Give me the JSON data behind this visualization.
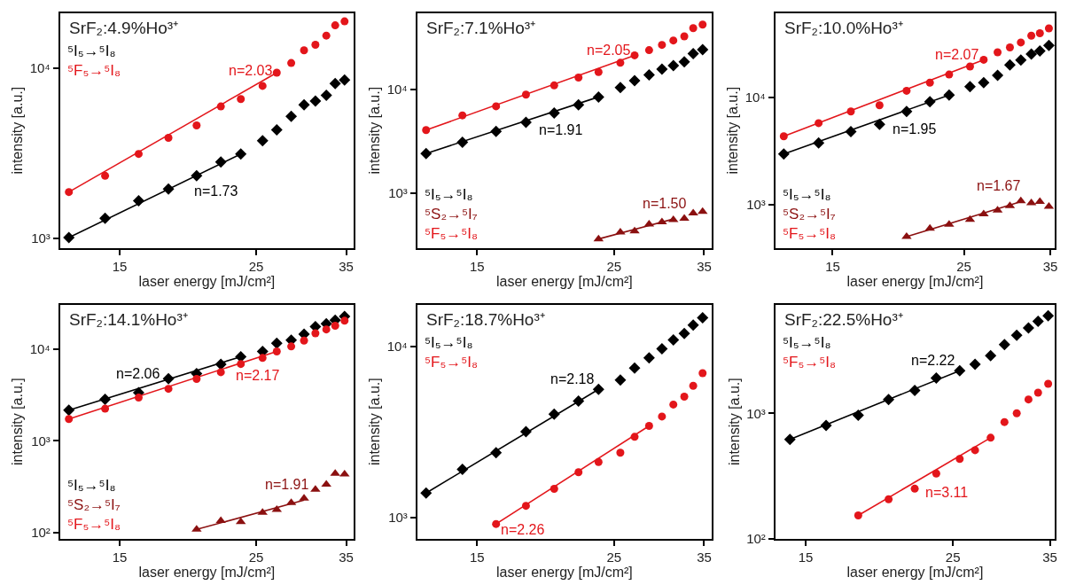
{
  "chart_data": [
    {
      "type": "scatter",
      "title": "SrF₂:4.9%Ho³⁺",
      "xlabel": "laser energy [mJ/cm²]",
      "ylabel": "intensity [a.u.]",
      "log": "xy",
      "grid": false,
      "legend": "top left",
      "xlim": [
        12.0,
        36.0
      ],
      "xticks": [
        15,
        25,
        35
      ],
      "ylim": [
        880,
        21000
      ],
      "yticks": [
        {
          "value": 1000,
          "label": "10³"
        },
        {
          "value": 10000,
          "label": "10⁴"
        }
      ],
      "x": [
        12.4,
        14.2,
        16.1,
        18.0,
        20.0,
        21.9,
        23.6,
        25.6,
        27.0,
        28.5,
        29.9,
        31.2,
        32.5,
        33.6,
        34.8
      ],
      "series": [
        {
          "name": "⁵I₅→⁵I₈",
          "color": "#000000",
          "marker": "diamond",
          "values": [
            1010,
            1310,
            1660,
            1950,
            2330,
            2810,
            3130,
            3740,
            4330,
            5200,
            6090,
            6390,
            6920,
            8110,
            8500
          ]
        },
        {
          "name": "⁵F₅→⁵I₈",
          "color": "#e3161b",
          "marker": "circle",
          "values": [
            1870,
            2330,
            3130,
            3890,
            4600,
            5950,
            6570,
            7850,
            9390,
            10700,
            12700,
            13700,
            15500,
            17800,
            18800
          ]
        },
        {
          "type": "line",
          "color": "#e3161b",
          "x": [
            12.4,
            27.0
          ],
          "values": [
            1870,
            9390
          ]
        },
        {
          "type": "line",
          "color": "#000000",
          "x": [
            12.4,
            23.6
          ],
          "values": [
            1010,
            3130
          ]
        }
      ],
      "annotations": [
        "n=2.03",
        "n=1.73"
      ]
    },
    {
      "type": "scatter",
      "title": "SrF₂:7.1%Ho³⁺",
      "xlabel": "laser energy [mJ/cm²]",
      "ylabel": "intensity [a.u.]",
      "log": "xy",
      "grid": false,
      "legend": "bottom left",
      "xlim": [
        12.0,
        36.0
      ],
      "xticks": [
        15,
        25,
        35
      ],
      "ylim": [
        295,
        55000
      ],
      "yticks": [
        {
          "value": 1000,
          "label": "10³"
        },
        {
          "value": 10000,
          "label": "10⁴"
        }
      ],
      "x": [
        12.4,
        14.2,
        16.1,
        18.0,
        20.0,
        21.9,
        23.6,
        25.6,
        27.0,
        28.5,
        29.9,
        31.2,
        32.5,
        33.6,
        34.8
      ],
      "series": [
        {
          "name": "⁵I₅→⁵I₈",
          "color": "#000000",
          "marker": "diamond",
          "values": [
            2410,
            3090,
            3940,
            4820,
            5930,
            7130,
            8500,
            10500,
            12200,
            13900,
            15800,
            17100,
            18600,
            22300,
            24400
          ]
        },
        {
          "name": "⁵S₂→⁵I₇",
          "color": "#8b1010",
          "marker": "triangle",
          "values": [
            null,
            null,
            null,
            null,
            null,
            null,
            359,
            417,
            428,
            498,
            525,
            550,
            567,
            638,
            660
          ]
        },
        {
          "name": "⁵F₅→⁵I₈",
          "color": "#e3161b",
          "marker": "circle",
          "values": [
            4060,
            5640,
            6900,
            8950,
            11000,
            13100,
            14800,
            18200,
            21500,
            24100,
            27100,
            29900,
            32800,
            39400,
            42600
          ]
        },
        {
          "type": "line",
          "color": "#e3161b",
          "x": [
            12.4,
            27.0
          ],
          "values": [
            4060,
            21500
          ]
        },
        {
          "type": "line",
          "color": "#000000",
          "x": [
            12.4,
            23.6
          ],
          "values": [
            2410,
            8500
          ]
        },
        {
          "type": "line",
          "color": "#8b1010",
          "x": [
            23.6,
            31.2
          ],
          "values": [
            359,
            560
          ]
        }
      ],
      "annotations": [
        "n=2.05",
        "n=1.91",
        "n=1.50"
      ]
    },
    {
      "type": "scatter",
      "title": "SrF₂:10.0%Ho³⁺",
      "xlabel": "laser energy [mJ/cm²]",
      "ylabel": "intensity [a.u.]",
      "log": "xy",
      "grid": false,
      "legend": "bottom left",
      "xlim": [
        12.0,
        35.6
      ],
      "xticks": [
        15,
        25,
        35
      ],
      "ylim": [
        394,
        61000
      ],
      "yticks": [
        {
          "value": 1000,
          "label": "10³"
        },
        {
          "value": 10000,
          "label": "10⁴"
        }
      ],
      "x": [
        12.4,
        14.2,
        16.1,
        18.0,
        20.0,
        21.9,
        23.6,
        25.6,
        27.0,
        28.5,
        29.9,
        31.2,
        32.5,
        33.6,
        34.8
      ],
      "series": [
        {
          "name": "⁵I₅→⁵I₈",
          "color": "#000000",
          "marker": "diamond",
          "values": [
            2960,
            3760,
            4780,
            5600,
            7380,
            9100,
            10500,
            12600,
            13700,
            16000,
            20000,
            22300,
            25300,
            27100,
            30500
          ]
        },
        {
          "name": "⁵S₂→⁵I₇",
          "color": "#8b1010",
          "marker": "triangle",
          "values": [
            null,
            null,
            null,
            null,
            500,
            596,
            651,
            721,
            813,
            881,
            969,
            1080,
            1030,
            1060,
            957
          ]
        },
        {
          "name": "⁵F₅→⁵I₈",
          "color": "#e3161b",
          "marker": "circle",
          "values": [
            4330,
            5740,
            7380,
            8430,
            11500,
            13700,
            16300,
            19400,
            22400,
            26300,
            29200,
            32500,
            37600,
            39600,
            44000
          ]
        },
        {
          "type": "line",
          "color": "#e3161b",
          "x": [
            12.4,
            27.0
          ],
          "values": [
            4330,
            22400
          ]
        },
        {
          "type": "line",
          "color": "#000000",
          "x": [
            12.4,
            23.6
          ],
          "values": [
            2960,
            10500
          ]
        },
        {
          "type": "line",
          "color": "#8b1010",
          "x": [
            20.0,
            31.2
          ],
          "values": [
            500,
            1060
          ]
        }
      ],
      "annotations": [
        "n=2.07",
        "n=1.95",
        "n=1.67"
      ]
    },
    {
      "type": "scatter",
      "title": "SrF₂:14.1%Ho³⁺",
      "xlabel": "laser energy [mJ/cm²]",
      "ylabel": "intensity [a.u.]",
      "log": "xy",
      "grid": false,
      "legend": "bottom left",
      "xlim": [
        12.0,
        36.0
      ],
      "xticks": [
        15,
        25,
        35
      ],
      "ylim": [
        86,
        30500
      ],
      "yticks": [
        {
          "value": 100,
          "label": "10²"
        },
        {
          "value": 1000,
          "label": "10³"
        },
        {
          "value": 10000,
          "label": "10⁴"
        }
      ],
      "x": [
        12.4,
        14.2,
        16.1,
        18.0,
        20.0,
        21.9,
        23.6,
        25.6,
        27.0,
        28.5,
        29.9,
        31.2,
        32.5,
        33.6,
        34.8
      ],
      "series": [
        {
          "name": "⁵I₅→⁵I₈",
          "color": "#000000",
          "marker": "diamond",
          "values": [
            2160,
            2830,
            3350,
            4770,
            5400,
            6830,
            8270,
            9440,
            11600,
            12500,
            14600,
            17600,
            18900,
            20700,
            22700
          ]
        },
        {
          "name": "⁵S₂→⁵I₇",
          "color": "#8b1010",
          "marker": "triangle",
          "values": [
            null,
            null,
            null,
            null,
            108,
            134,
            131,
            165,
            177,
            211,
            236,
            294,
            335,
            440,
            433
          ]
        },
        {
          "name": "⁵F₅→⁵I₈",
          "color": "#e3161b",
          "marker": "circle",
          "values": [
            1730,
            2240,
            2960,
            3690,
            4730,
            5600,
            6880,
            8010,
            9440,
            10700,
            12400,
            14900,
            16400,
            18000,
            20400
          ]
        },
        {
          "type": "line",
          "color": "#000000",
          "x": [
            12.4,
            23.6
          ],
          "values": [
            2160,
            8270
          ]
        },
        {
          "type": "line",
          "color": "#e3161b",
          "x": [
            12.4,
            27.0
          ],
          "values": [
            1730,
            9440
          ]
        },
        {
          "type": "line",
          "color": "#8b1010",
          "x": [
            20.0,
            29.9
          ],
          "values": [
            108,
            225
          ]
        }
      ],
      "annotations": [
        "n=2.06",
        "n=2.17",
        "n=1.91"
      ]
    },
    {
      "type": "scatter",
      "title": "SrF₂:18.7%Ho³⁺",
      "xlabel": "laser energy [mJ/cm²]",
      "ylabel": "intensity [a.u.]",
      "log": "xy",
      "grid": false,
      "legend": "top left",
      "xlim": [
        12.0,
        36.0
      ],
      "xticks": [
        15,
        25,
        35
      ],
      "ylim": [
        754,
        17500
      ],
      "yticks": [
        {
          "value": 1000,
          "label": "10³"
        },
        {
          "value": 10000,
          "label": "10⁴"
        }
      ],
      "x": [
        12.4,
        14.2,
        16.1,
        18.0,
        20.0,
        21.9,
        23.6,
        25.6,
        27.0,
        28.5,
        29.9,
        31.2,
        32.5,
        33.6,
        34.8
      ],
      "series": [
        {
          "name": "⁵I₅→⁵I₈",
          "color": "#000000",
          "marker": "diamond",
          "values": [
            1390,
            1910,
            2390,
            3170,
            4010,
            4790,
            5610,
            6360,
            7470,
            8570,
            9660,
            10900,
            11900,
            13300,
            14700
          ]
        },
        {
          "name": "⁵F₅→⁵I₈",
          "color": "#e3161b",
          "marker": "circle",
          "values": [
            null,
            null,
            917,
            1170,
            1470,
            1840,
            2110,
            2390,
            2960,
            3430,
            3890,
            4570,
            5080,
            5880,
            6970
          ]
        },
        {
          "type": "line",
          "color": "#000000",
          "x": [
            12.4,
            23.6
          ],
          "values": [
            1390,
            5610
          ]
        },
        {
          "type": "line",
          "color": "#e3161b",
          "x": [
            16.1,
            28.5
          ],
          "values": [
            917,
            3430
          ]
        }
      ],
      "annotations": [
        "n=2.18",
        "n=2.26"
      ]
    },
    {
      "type": "scatter",
      "title": "SrF₂:22.5%Ho³⁺",
      "xlabel": "laser energy [mJ/cm²]",
      "ylabel": "intensity [a.u.]",
      "log": "xy",
      "grid": false,
      "legend": "top left",
      "xlim": [
        13.5,
        35.6
      ],
      "xticks": [
        15,
        25,
        35
      ],
      "ylim": [
        100,
        7360
      ],
      "yticks": [
        {
          "value": 100,
          "label": "10²"
        },
        {
          "value": 1000,
          "label": "10³"
        }
      ],
      "x": [
        14.2,
        16.1,
        18.0,
        20.0,
        21.9,
        23.6,
        25.6,
        27.0,
        28.5,
        29.9,
        31.2,
        32.5,
        33.6,
        34.8
      ],
      "series": [
        {
          "name": "⁵I₅→⁵I₈",
          "color": "#000000",
          "marker": "diamond",
          "values": [
            618,
            798,
            964,
            1290,
            1520,
            1910,
            2190,
            2460,
            2890,
            3540,
            4200,
            4800,
            5430,
            6010
          ]
        },
        {
          "name": "⁵F₅→⁵I₈",
          "color": "#e3161b",
          "marker": "circle",
          "values": [
            null,
            null,
            153,
            206,
            250,
            330,
            432,
            507,
            638,
            851,
            1000,
            1290,
            1460,
            1720
          ]
        },
        {
          "type": "line",
          "color": "#000000",
          "x": [
            14.2,
            25.6
          ],
          "values": [
            618,
            2190
          ]
        },
        {
          "type": "line",
          "color": "#e3161b",
          "x": [
            18.0,
            28.5
          ],
          "values": [
            153,
            638
          ]
        }
      ],
      "annotations": [
        "n=2.22",
        "n=3.11"
      ]
    }
  ]
}
